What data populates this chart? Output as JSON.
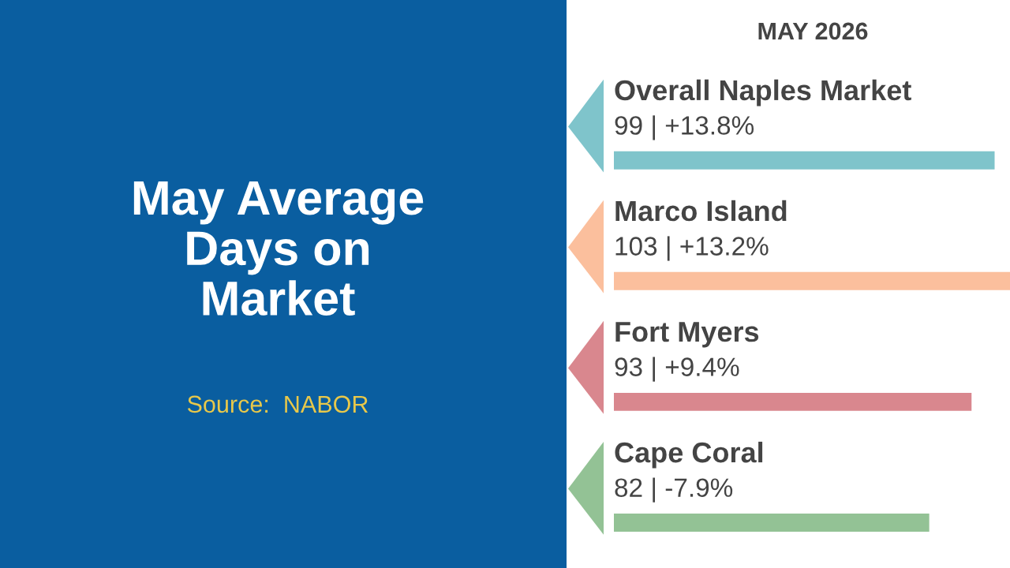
{
  "chart_data": {
    "type": "bar",
    "orientation": "horizontal",
    "title": "May Average\nDays on\nMarket",
    "subtitle": "MAY 2026",
    "categories": [
      "Overall Naples Market",
      "Marco Island",
      "Fort Myers",
      "Cape Coral"
    ],
    "values": [
      99,
      103,
      93,
      82
    ],
    "colors": [
      "#7fc4cb",
      "#fbbf9d",
      "#d9878e",
      "#93c295"
    ],
    "value_labels": [
      "99 | +13.8%",
      "103 | +13.2%",
      "93 | +9.4%",
      "82 | -7.9%"
    ],
    "annotations": [
      "Source:  NABOR"
    ]
  }
}
